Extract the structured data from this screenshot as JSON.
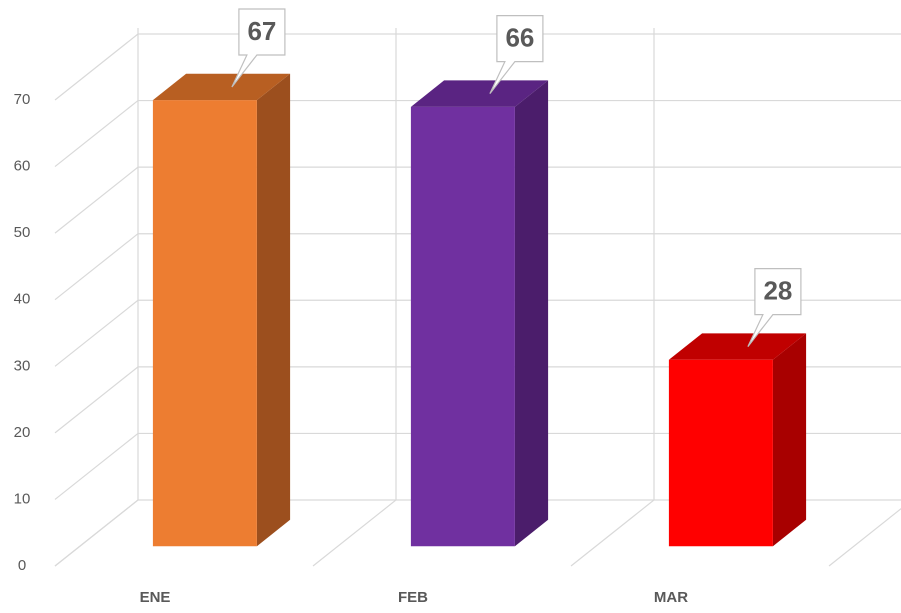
{
  "chart_data": {
    "type": "bar3d",
    "categories": [
      "ENE",
      "FEB",
      "MAR"
    ],
    "values": [
      67,
      66,
      28
    ],
    "colors": [
      "#ED7D31",
      "#7030A0",
      "#FF0000"
    ],
    "side_colors": [
      "#9C4F1E",
      "#4B1D6B",
      "#A80000"
    ],
    "top_colors": [
      "#B85F22",
      "#5A2482",
      "#C00000"
    ],
    "ylim": [
      0,
      70
    ],
    "yticks": [
      0,
      10,
      20,
      30,
      40,
      50,
      60,
      70
    ],
    "grid": true
  }
}
